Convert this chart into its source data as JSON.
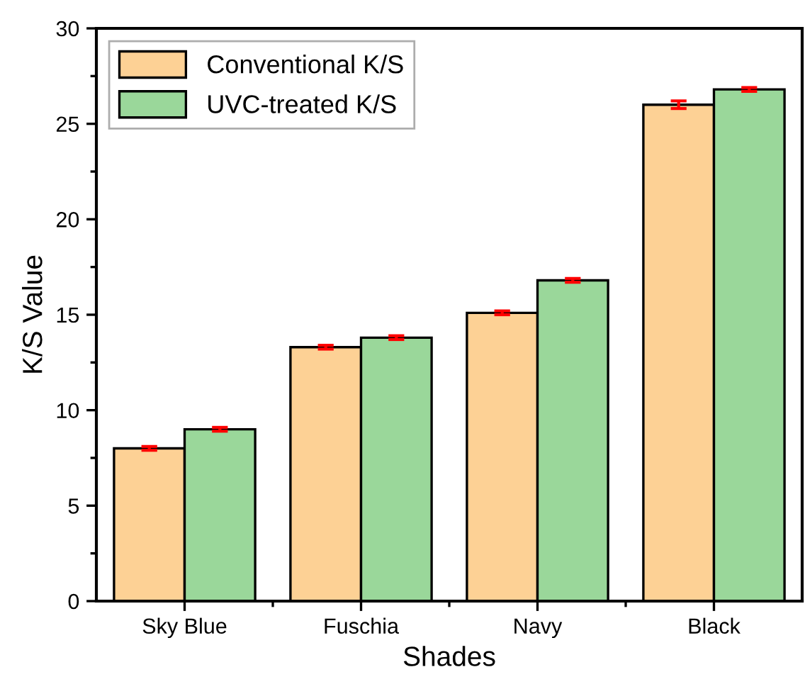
{
  "chart_data": {
    "type": "bar",
    "xlabel": "Shades",
    "ylabel": "K/S Value",
    "categories": [
      "Sky Blue",
      "Fuschia",
      "Navy",
      "Black"
    ],
    "series": [
      {
        "name": "Conventional K/S",
        "color": "#fdd195",
        "values": [
          8.0,
          13.3,
          15.1,
          26.0
        ],
        "errors": [
          0.1,
          0.1,
          0.1,
          0.2
        ]
      },
      {
        "name": "UVC-treated K/S",
        "color": "#9ad79a",
        "values": [
          9.0,
          13.8,
          16.8,
          26.8
        ],
        "errors": [
          0.1,
          0.1,
          0.1,
          0.1
        ]
      }
    ],
    "ylim": [
      0,
      30
    ],
    "yticks": [
      0,
      5,
      10,
      15,
      20,
      25,
      30
    ],
    "grid": false,
    "legend": "top left"
  }
}
